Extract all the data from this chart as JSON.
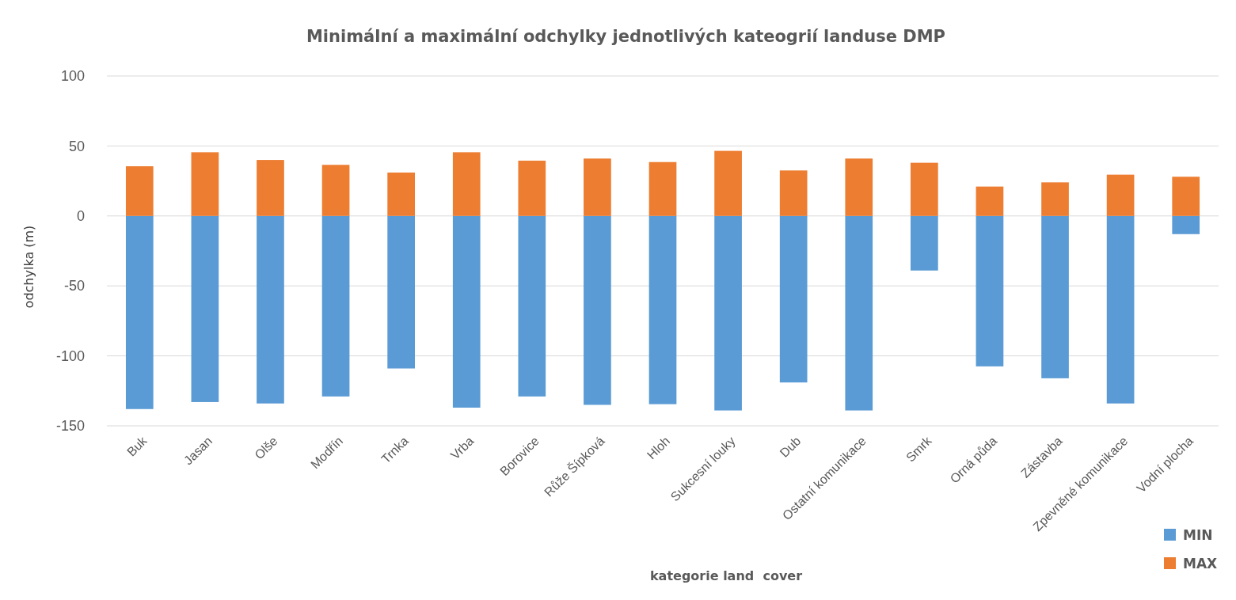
{
  "chart_data": {
    "type": "bar",
    "title": "Minimální a maximální odchylky jednotlivých kateogrií landuse DMP",
    "xlabel": "kategorie land  cover",
    "ylabel": "odchylka (m)",
    "categories": [
      "Buk",
      "Jasan",
      "Olše",
      "Modřín",
      "Trnka",
      "Vrba",
      "Borovice",
      "Růže Šípková",
      "Hloh",
      "Sukcesní louky",
      "Dub",
      "Ostatní komunikace",
      "Smrk",
      "Orná půda",
      "Zástavba",
      "Zpevněné komunikace",
      "Vodní plocha"
    ],
    "series": [
      {
        "name": "MIN",
        "color": "#5b9bd5",
        "values": [
          -138,
          -133,
          -134,
          -129,
          -109,
          -137,
          -129,
          -135,
          -134.5,
          -139,
          -119,
          -139,
          -39,
          -107.5,
          -116,
          -134,
          -13
        ]
      },
      {
        "name": "MAX",
        "color": "#ed7d31",
        "values": [
          35.5,
          45.5,
          40,
          36.5,
          31,
          45.5,
          39.5,
          41,
          38.5,
          46.5,
          32.5,
          41,
          38,
          21,
          24,
          29.5,
          28
        ]
      }
    ],
    "stacked": true,
    "ylim": [
      -150,
      100
    ],
    "yticks": [
      -150,
      -100,
      -50,
      0,
      50,
      100
    ],
    "grid": "y",
    "legend": "bottom right"
  }
}
